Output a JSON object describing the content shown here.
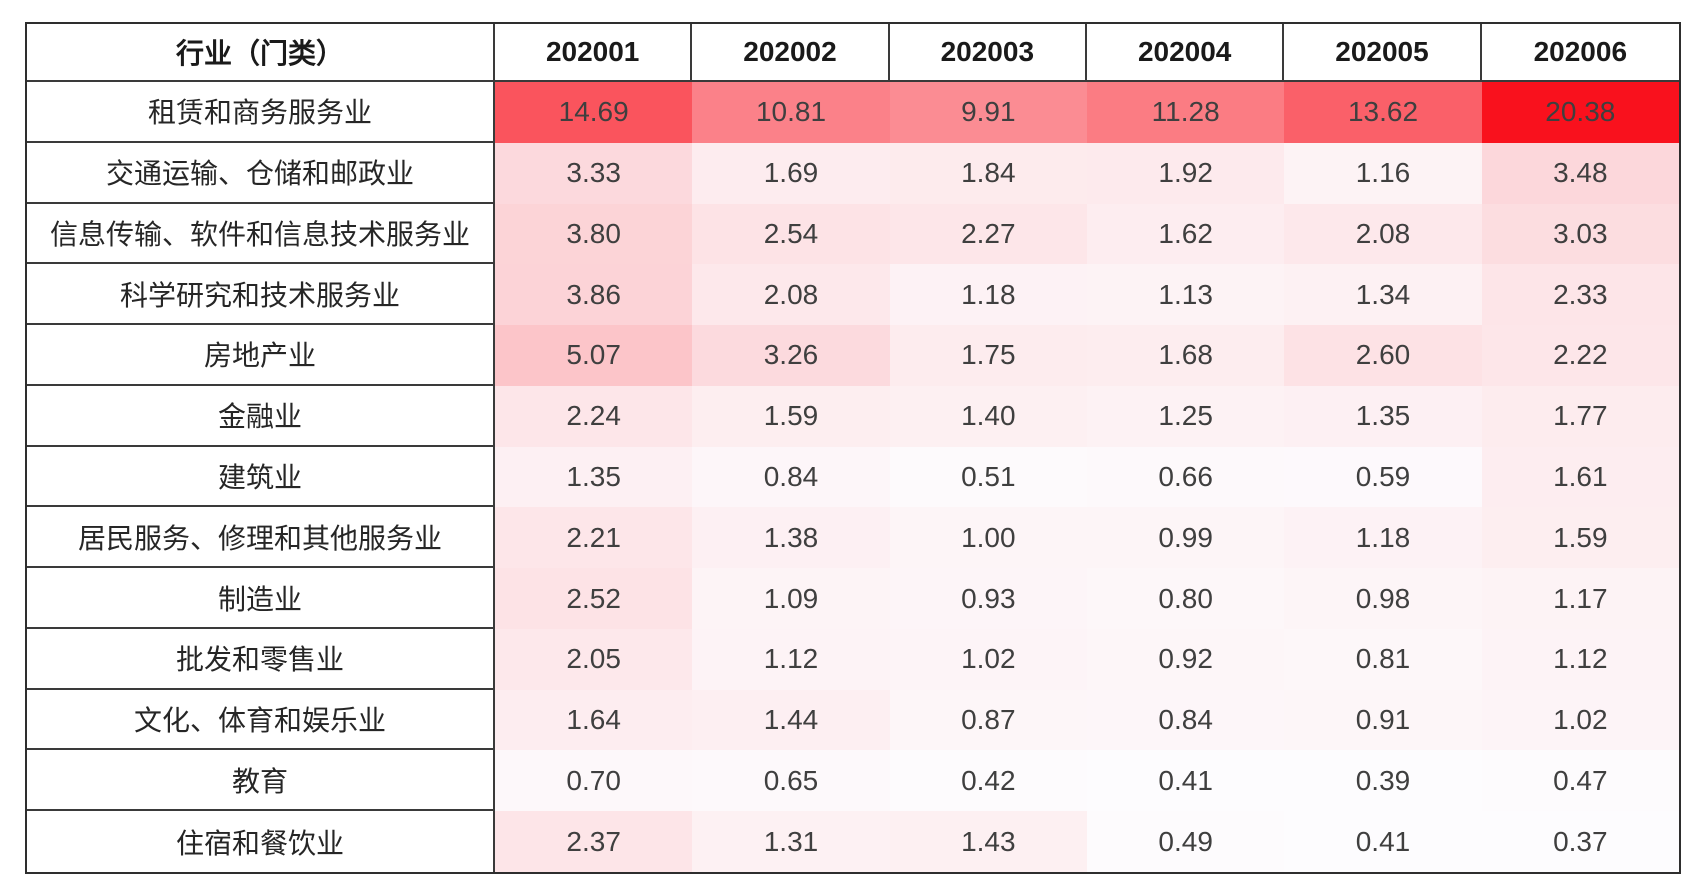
{
  "table": {
    "header": {
      "industry_label": "行业（门类）"
    }
  },
  "heatmap_scale": {
    "min_value": 0.37,
    "max_value": 20.38,
    "min_color": "#FDFCFE",
    "max_color": "#F9111D"
  },
  "text_colors": {
    "header": "#1a1a1a",
    "label": "#262626",
    "value": "#3f3f3f"
  },
  "chart_data": {
    "type": "heatmap",
    "title": "",
    "legend": "none",
    "color_scale": "white-to-red",
    "value_format": "0.00",
    "columns": [
      "202001",
      "202002",
      "202003",
      "202004",
      "202005",
      "202006"
    ],
    "rows": [
      "租赁和商务服务业",
      "交通运输、仓储和邮政业",
      "信息传输、软件和信息技术服务业",
      "科学研究和技术服务业",
      "房地产业",
      "金融业",
      "建筑业",
      "居民服务、修理和其他服务业",
      "制造业",
      "批发和零售业",
      "文化、体育和娱乐业",
      "教育",
      "住宿和餐饮业"
    ],
    "values": [
      [
        14.69,
        10.81,
        9.91,
        11.28,
        13.62,
        20.38
      ],
      [
        3.33,
        1.69,
        1.84,
        1.92,
        1.16,
        3.48
      ],
      [
        3.8,
        2.54,
        2.27,
        1.62,
        2.08,
        3.03
      ],
      [
        3.86,
        2.08,
        1.18,
        1.13,
        1.34,
        2.33
      ],
      [
        5.07,
        3.26,
        1.75,
        1.68,
        2.6,
        2.22
      ],
      [
        2.24,
        1.59,
        1.4,
        1.25,
        1.35,
        1.77
      ],
      [
        1.35,
        0.84,
        0.51,
        0.66,
        0.59,
        1.61
      ],
      [
        2.21,
        1.38,
        1.0,
        0.99,
        1.18,
        1.59
      ],
      [
        2.52,
        1.09,
        0.93,
        0.8,
        0.98,
        1.17
      ],
      [
        2.05,
        1.12,
        1.02,
        0.92,
        0.81,
        1.12
      ],
      [
        1.64,
        1.44,
        0.87,
        0.84,
        0.91,
        1.02
      ],
      [
        0.7,
        0.65,
        0.42,
        0.41,
        0.39,
        0.47
      ],
      [
        2.37,
        1.31,
        1.43,
        0.49,
        0.41,
        0.37
      ]
    ]
  }
}
